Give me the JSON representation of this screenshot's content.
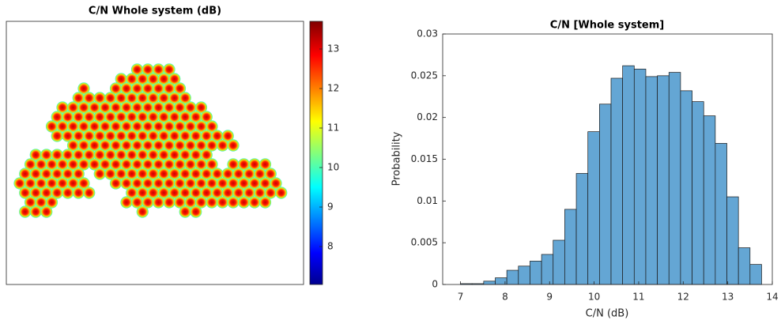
{
  "chart_data": [
    {
      "type": "heatmap",
      "title": "C/N Whole system (dB)",
      "clim": [
        7.04,
        13.7
      ],
      "cticks": [
        8,
        9,
        10,
        11,
        12,
        13
      ]
    },
    {
      "type": "histogram",
      "title": "C/N [Whole system]",
      "xlabel": "C/N (dB)",
      "ylabel": "Probability",
      "bins": [
        7,
        7.26,
        7.52,
        7.78,
        8.04,
        8.3,
        8.56,
        8.82,
        9.08,
        9.34,
        9.6,
        9.86,
        10.12,
        10.38,
        10.64,
        10.9,
        11.16,
        11.42,
        11.68,
        11.94,
        12.2,
        12.46,
        12.72,
        12.98,
        13.24,
        13.5,
        13.76
      ],
      "counts": [
        0.0001,
        0.0001,
        0.0004,
        0.0008,
        0.0017,
        0.0022,
        0.0028,
        0.0036,
        0.0053,
        0.009,
        0.0133,
        0.0183,
        0.0216,
        0.0247,
        0.0262,
        0.0258,
        0.0249,
        0.025,
        0.0254,
        0.0232,
        0.0219,
        0.0202,
        0.0169,
        0.0105,
        0.0044,
        0.0024
      ],
      "color": "#64a6d4",
      "xlim": [
        6.6,
        14
      ],
      "xticks": [
        7,
        8,
        9,
        10,
        11,
        12,
        13,
        14
      ],
      "ylim": [
        0,
        0.03
      ],
      "yticks": [
        0,
        0.005,
        0.01,
        0.015,
        0.02,
        0.025,
        0.03
      ]
    }
  ]
}
